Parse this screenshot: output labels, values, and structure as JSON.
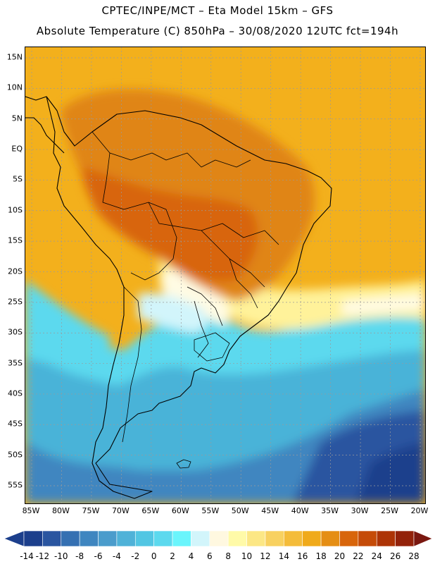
{
  "header": {
    "line1": "CPTEC/INPE/MCT –  Eta Model 15km – GFS",
    "line2": "Absolute Temperature (C) 850hPa – 30/08/2020 12UTC fct=194h"
  },
  "axes": {
    "lat_labels": [
      "15N",
      "10N",
      "5N",
      "EQ",
      "5S",
      "10S",
      "15S",
      "20S",
      "25S",
      "30S",
      "35S",
      "40S",
      "45S",
      "50S",
      "55S"
    ],
    "lon_labels": [
      "85W",
      "80W",
      "75W",
      "70W",
      "65W",
      "60W",
      "55W",
      "50W",
      "45W",
      "40W",
      "35W",
      "30W",
      "25W",
      "20W"
    ]
  },
  "colorbar": {
    "labels": [
      "-14",
      "-12",
      "-10",
      "-8",
      "-6",
      "-4",
      "-2",
      "0",
      "2",
      "4",
      "6",
      "8",
      "10",
      "12",
      "14",
      "16",
      "18",
      "20",
      "22",
      "24",
      "26",
      "28"
    ],
    "colors": [
      "#1c3f8c",
      "#2a55a0",
      "#3570b2",
      "#3f86c0",
      "#4a9ccc",
      "#4fb2d8",
      "#52c6e3",
      "#5cd9ee",
      "#6af5fc",
      "#d2f5fb",
      "#fff8e0",
      "#fffaa8",
      "#fce785",
      "#f8d160",
      "#f4bc3a",
      "#f0aa1a",
      "#e58e14",
      "#d8650b",
      "#c54b08",
      "#ad3406",
      "#93220a",
      "#7a1810"
    ]
  },
  "map": {
    "colors": {
      "ocean_warm": "#f3b01c",
      "land_hot": "#e08518",
      "land_very_hot": "#d8650b",
      "pale_yellow": "#fff29a",
      "cream": "#fffbe3",
      "light_cyan": "#d2f5fb",
      "cyan": "#5cd9ee",
      "mid_blue": "#4ab3d8",
      "blue": "#3f86c0",
      "deep_blue": "#2a55a0",
      "darkest_blue": "#1c3f8c",
      "grid": "#9a9a9a",
      "coast": "#000000"
    }
  }
}
